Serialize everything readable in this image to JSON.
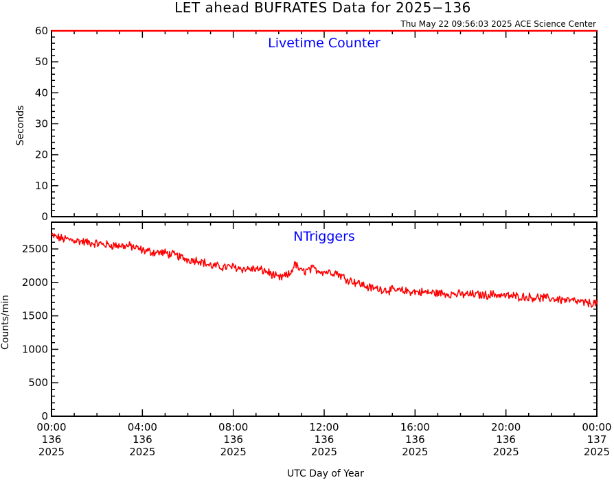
{
  "title": "LET ahead BUFRATES Data for 2025−136",
  "timestamp": "Thu May 22 09:56:03 2025 ACE Science Center",
  "xlabel": "UTC Day of Year",
  "x_ticks": [
    {
      "time": "00:00",
      "day": "136",
      "year": "2025",
      "hour": 0
    },
    {
      "time": "04:00",
      "day": "136",
      "year": "2025",
      "hour": 4
    },
    {
      "time": "08:00",
      "day": "136",
      "year": "2025",
      "hour": 8
    },
    {
      "time": "12:00",
      "day": "136",
      "year": "2025",
      "hour": 12
    },
    {
      "time": "16:00",
      "day": "136",
      "year": "2025",
      "hour": 16
    },
    {
      "time": "20:00",
      "day": "136",
      "year": "2025",
      "hour": 20
    },
    {
      "time": "00:00",
      "day": "137",
      "year": "2025",
      "hour": 24
    }
  ],
  "colors": {
    "data": "#ff0000",
    "panel_label": "#0000ff",
    "axes": "#000000"
  },
  "chart_data": [
    {
      "type": "line",
      "title": "Livetime Counter",
      "ylabel": "Seconds",
      "xlim": [
        0,
        24
      ],
      "ylim": [
        0,
        60
      ],
      "yticks": [
        0,
        10,
        20,
        30,
        40,
        50,
        60
      ],
      "series": [
        {
          "values": {
            "x": [
              0,
              24
            ],
            "y": [
              60,
              60
            ]
          }
        }
      ]
    },
    {
      "type": "line",
      "title": "NTriggers",
      "ylabel": "Counts/min",
      "xlim": [
        0,
        24
      ],
      "ylim": [
        0,
        2900
      ],
      "yticks": [
        0,
        500,
        1000,
        1500,
        2000,
        2500
      ],
      "series": [
        {
          "values": {
            "x": [
              0,
              0.5,
              1,
              1.5,
              2,
              2.5,
              3,
              3.5,
              4,
              4.5,
              5,
              5.5,
              6,
              6.5,
              7,
              7.5,
              8,
              8.5,
              9,
              9.5,
              10,
              10.5,
              10.7,
              11,
              11.5,
              12,
              12.5,
              13,
              13.5,
              14,
              14.5,
              15,
              15.5,
              16,
              16.5,
              17,
              17.5,
              18,
              18.5,
              19,
              19.5,
              20,
              20.5,
              21,
              21.5,
              22,
              22.5,
              23,
              23.5,
              24
            ],
            "y": [
              2700,
              2650,
              2630,
              2600,
              2580,
              2560,
              2550,
              2540,
              2480,
              2450,
              2440,
              2400,
              2340,
              2330,
              2250,
              2230,
              2230,
              2200,
              2200,
              2160,
              2060,
              2120,
              2280,
              2160,
              2200,
              2160,
              2150,
              2050,
              1990,
              1920,
              1900,
              1880,
              1870,
              1860,
              1850,
              1840,
              1830,
              1820,
              1820,
              1810,
              1820,
              1800,
              1790,
              1780,
              1770,
              1760,
              1740,
              1720,
              1690,
              1690
            ]
          }
        }
      ]
    }
  ]
}
